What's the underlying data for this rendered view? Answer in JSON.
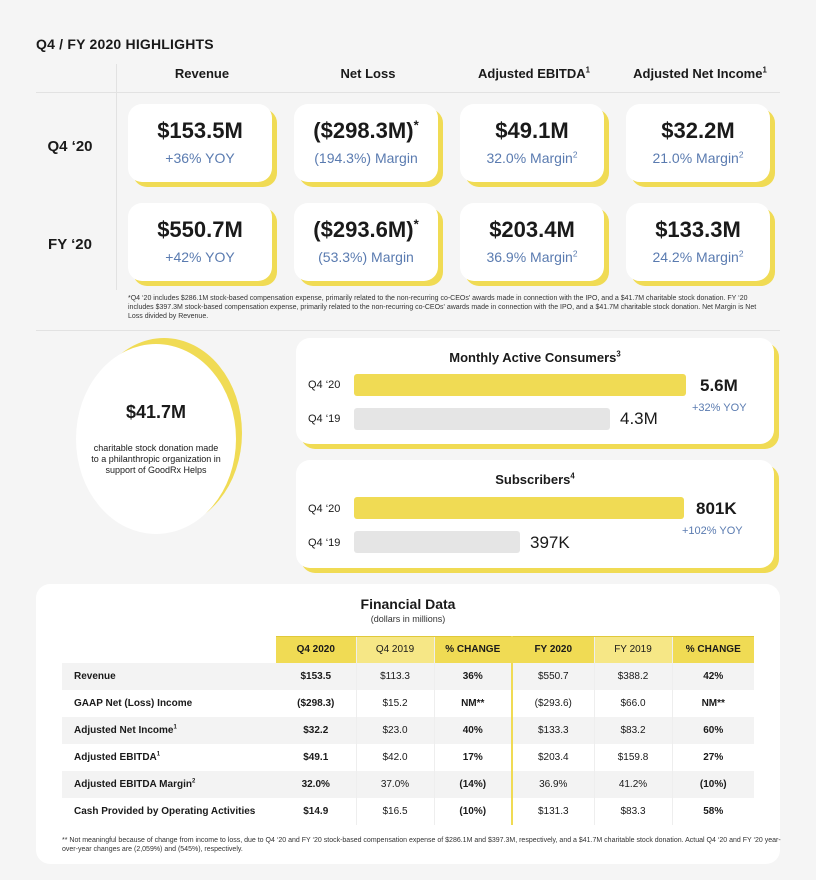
{
  "title": "Q4 / FY 2020 HIGHLIGHTS",
  "columns": [
    "Revenue",
    "Net Loss",
    "Adjusted EBITDA",
    "Adjusted Net Income"
  ],
  "column_sups": [
    "",
    "",
    "1",
    "1"
  ],
  "rows": [
    {
      "label": "Q4 ‘20",
      "cards": [
        {
          "big": "$153.5M",
          "big_sup": "",
          "sub": "+36% YOY",
          "sub_sup": ""
        },
        {
          "big": "($298.3M)",
          "big_sup": "*",
          "sub": "(194.3%) Margin",
          "sub_sup": ""
        },
        {
          "big": "$49.1M",
          "big_sup": "",
          "sub": "32.0% Margin",
          "sub_sup": "2"
        },
        {
          "big": "$32.2M",
          "big_sup": "",
          "sub": "21.0% Margin",
          "sub_sup": "2"
        }
      ]
    },
    {
      "label": "FY ‘20",
      "cards": [
        {
          "big": "$550.7M",
          "big_sup": "",
          "sub": "+42% YOY",
          "sub_sup": ""
        },
        {
          "big": "($293.6M)",
          "big_sup": "*",
          "sub": "(53.3%) Margin",
          "sub_sup": ""
        },
        {
          "big": "$203.4M",
          "big_sup": "",
          "sub": "36.9% Margin",
          "sub_sup": "2"
        },
        {
          "big": "$133.3M",
          "big_sup": "",
          "sub": "24.2% Margin",
          "sub_sup": "2"
        }
      ]
    }
  ],
  "footnote_top": "*Q4 ‘20 includes $286.1M stock-based compensation expense, primarily related to the non-recurring co-CEOs' awards made in connection with the IPO, and a $41.7M charitable stock donation. FY ‘20 includes $397.3M stock-based compensation expense, primarily related to the non-recurring co-CEOs' awards made in connection with the IPO, and a $41.7M charitable stock donation. Net Margin is Net Loss divided by Revenue.",
  "donation": {
    "amount": "$41.7M",
    "text": "charitable stock donation made to a philanthropic organization in support of GoodRx Helps"
  },
  "mac": {
    "title": "Monthly Active Consumers",
    "title_sup": "3",
    "row1_label": "Q4 ‘20",
    "row1_value": "5.6M",
    "row2_label": "Q4 ‘19",
    "row2_value": "4.3M",
    "yoy": "+32% YOY"
  },
  "subs": {
    "title": "Subscribers",
    "title_sup": "4",
    "row1_label": "Q4 ‘20",
    "row1_value": "801K",
    "row2_label": "Q4 ‘19",
    "row2_value": "397K",
    "yoy": "+102% YOY"
  },
  "fin": {
    "title": "Financial Data",
    "subtitle": "(dollars in millions)",
    "headers": [
      "Q4 2020",
      "Q4 2019",
      "% CHANGE",
      "FY 2020",
      "FY 2019",
      "% CHANGE"
    ],
    "rows": [
      {
        "label": "Revenue",
        "sup": "",
        "cells": [
          "$153.5",
          "$113.3",
          "36%",
          "$550.7",
          "$388.2",
          "42%"
        ]
      },
      {
        "label": "GAAP Net (Loss) Income",
        "sup": "",
        "cells": [
          "($298.3)",
          "$15.2",
          "NM**",
          "($293.6)",
          "$66.0",
          "NM**"
        ]
      },
      {
        "label": "Adjusted Net Income",
        "sup": "1",
        "cells": [
          "$32.2",
          "$23.0",
          "40%",
          "$133.3",
          "$83.2",
          "60%"
        ]
      },
      {
        "label": "Adjusted EBITDA",
        "sup": "1",
        "cells": [
          "$49.1",
          "$42.0",
          "17%",
          "$203.4",
          "$159.8",
          "27%"
        ]
      },
      {
        "label": "Adjusted EBITDA Margin",
        "sup": "2",
        "cells": [
          "32.0%",
          "37.0%",
          "(14%)",
          "36.9%",
          "41.2%",
          "(10%)"
        ]
      },
      {
        "label": "Cash Provided by Operating Activities",
        "sup": "",
        "cells": [
          "$14.9",
          "$16.5",
          "(10%)",
          "$131.3",
          "$83.3",
          "58%"
        ]
      }
    ],
    "footnote": "** Not meaningful because of change from income to loss, due to Q4 ‘20 and FY ‘20 stock-based compensation expense of $286.1M and $397.3M, respectively, and a $41.7M charitable stock donation. Actual Q4 ‘20 and FY ‘20 year-over-year changes are (2,059%) and (545%), respectively."
  }
}
